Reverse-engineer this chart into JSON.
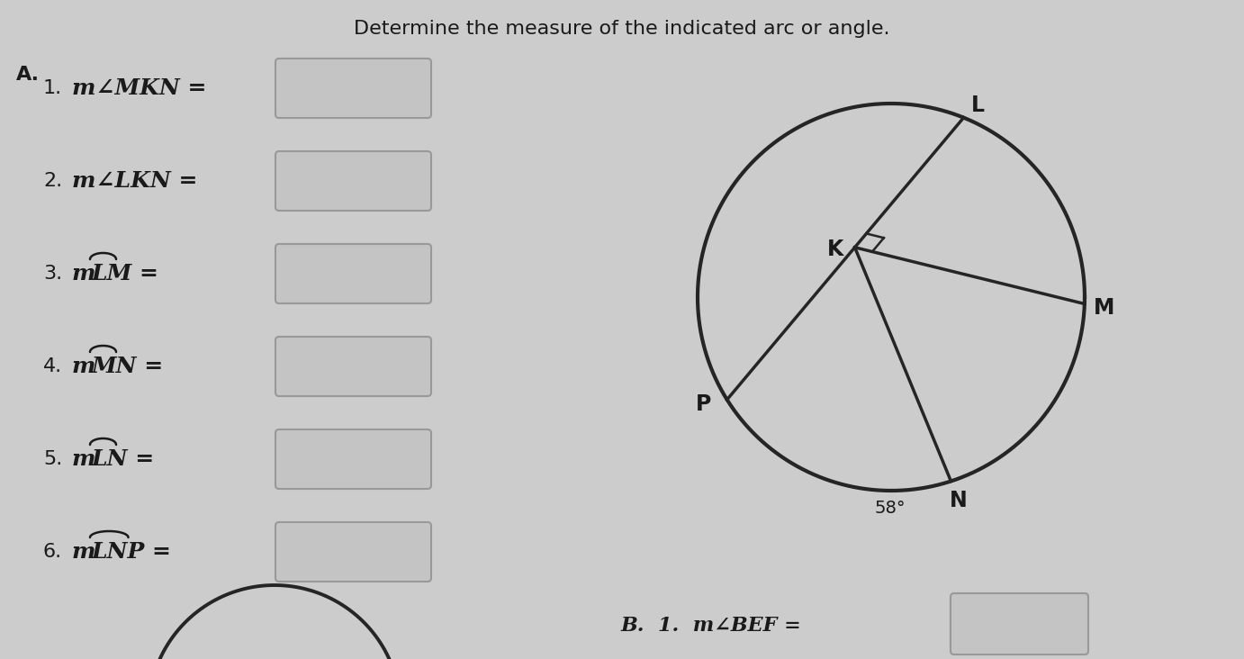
{
  "title": "Determine the measure of the indicated arc or angle.",
  "bg_color": "#cccccc",
  "text_color": "#1a1a1a",
  "title_fontsize": 16,
  "L_ang": 68,
  "M_ang": -2,
  "N_ang": -72,
  "P_ang": -148,
  "Kx": 0.05,
  "Ky": 0.18,
  "angle_label": "58°",
  "items": [
    {
      "num": "1.",
      "type": "angle",
      "text": "m∠MKN ="
    },
    {
      "num": "2.",
      "type": "angle",
      "text": "m∠LKN ="
    },
    {
      "num": "3.",
      "type": "arc",
      "text": "LM",
      "prefix": "m"
    },
    {
      "num": "4.",
      "type": "arc",
      "text": "MN",
      "prefix": "m"
    },
    {
      "num": "5.",
      "type": "arc",
      "text": "LN",
      "prefix": "m"
    },
    {
      "num": "6.",
      "type": "arc",
      "text": "LNP",
      "prefix": "m"
    }
  ]
}
